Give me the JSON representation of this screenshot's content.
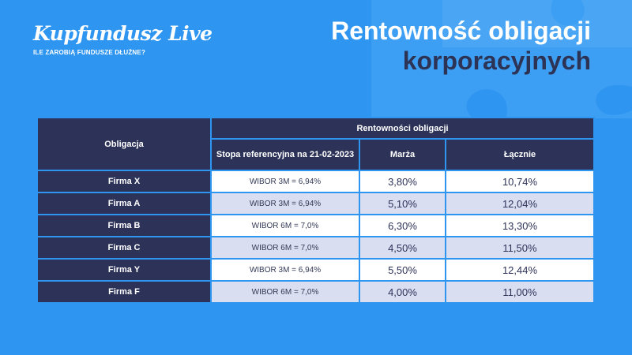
{
  "brand": {
    "name": "Kupfundusz Live",
    "tagline": "ILE ZAROBIĄ FUNDUSZE DŁUŻNE?"
  },
  "heading": {
    "line1": "Rentowność obligacji",
    "line2": "korporacyjnych"
  },
  "colors": {
    "background": "#2e95f1",
    "navy": "#2d3358",
    "row_alt": "#d9def0"
  },
  "table": {
    "col_obligacja": "Obligacja",
    "group_header": "Rentowności obligacji",
    "col_ref": "Stopa referencyjna na 21-02-2023",
    "col_marza": "Marża",
    "col_lacznie": "Łącznie",
    "rows": [
      {
        "name": "Firma X",
        "ref": "WIBOR 3M = 6,94%",
        "marza": "3,80%",
        "lacznie": "10,74%"
      },
      {
        "name": "Firma A",
        "ref": "WIBOR 3M = 6,94%",
        "marza": "5,10%",
        "lacznie": "12,04%"
      },
      {
        "name": "Firma B",
        "ref": "WIBOR 6M = 7,0%",
        "marza": "6,30%",
        "lacznie": "13,30%"
      },
      {
        "name": "Firma C",
        "ref": "WIBOR 6M = 7,0%",
        "marza": "4,50%",
        "lacznie": "11,50%"
      },
      {
        "name": "Firma Y",
        "ref": "WIBOR 3M = 6,94%",
        "marza": "5,50%",
        "lacznie": "12,44%"
      },
      {
        "name": "Firma F",
        "ref": "WIBOR 6M = 7,0%",
        "marza": "4,00%",
        "lacznie": "11,00%"
      }
    ]
  }
}
